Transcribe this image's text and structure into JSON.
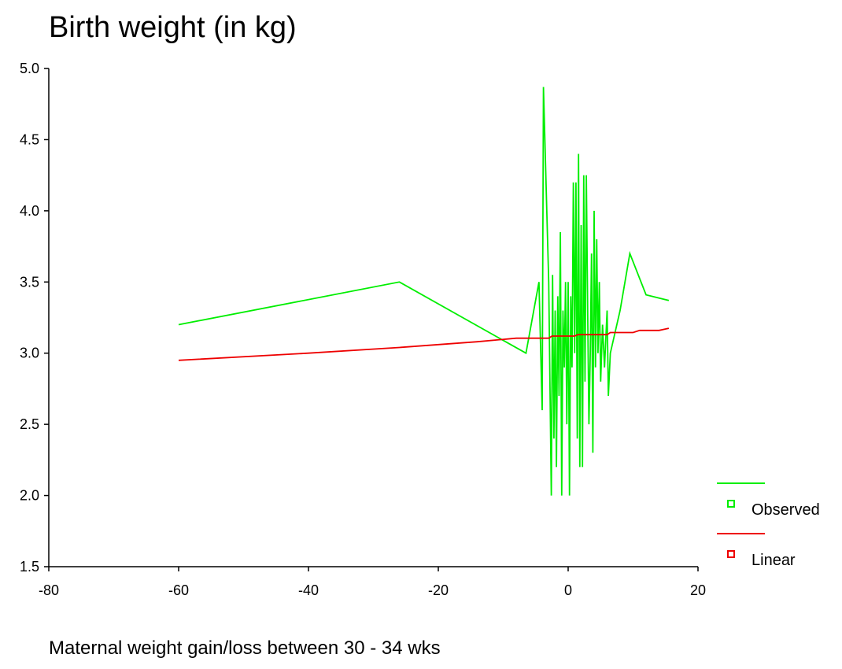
{
  "chart_data": {
    "type": "line",
    "title": "Birth weight (in kg)",
    "xlabel": "Maternal weight gain/loss between 30 - 34 wks",
    "ylabel": "",
    "xlim": [
      -80,
      20
    ],
    "ylim": [
      1.5,
      5.0
    ],
    "x_ticks": [
      -80,
      -60,
      -40,
      -20,
      0,
      20
    ],
    "x_tick_labels": [
      "-80",
      "-60",
      "-40",
      "-20",
      "0",
      "20"
    ],
    "y_ticks": [
      1.5,
      2.0,
      2.5,
      3.0,
      3.5,
      4.0,
      4.5,
      5.0
    ],
    "y_tick_labels": [
      "1.5",
      "2.0",
      "2.5",
      "3.0",
      "3.5",
      "4.0",
      "4.5",
      "5.0"
    ],
    "grid": false,
    "legend_position": "bottom-right",
    "series": [
      {
        "name": "Observed",
        "color": "#00ee00",
        "x": [
          -60,
          -26,
          -6.5,
          -4.5,
          -4.0,
          -3.8,
          -3.0,
          -2.6,
          -2.4,
          -2.2,
          -2.0,
          -1.8,
          -1.6,
          -1.4,
          -1.2,
          -1.0,
          -0.8,
          -0.6,
          -0.4,
          -0.2,
          0.0,
          0.2,
          0.4,
          0.6,
          0.8,
          1.0,
          1.2,
          1.4,
          1.6,
          1.8,
          2.0,
          2.2,
          2.4,
          2.6,
          2.8,
          3.0,
          3.2,
          3.4,
          3.6,
          3.8,
          4.0,
          4.2,
          4.4,
          4.6,
          4.8,
          5.0,
          5.3,
          5.6,
          6.0,
          6.2,
          6.5,
          8.0,
          9.5,
          12.0,
          15.5
        ],
        "y": [
          3.2,
          3.5,
          3.0,
          3.5,
          2.6,
          4.87,
          3.5,
          2.0,
          3.55,
          2.4,
          3.3,
          2.2,
          3.4,
          2.7,
          3.85,
          2.0,
          3.3,
          2.9,
          3.5,
          2.5,
          3.5,
          2.0,
          3.4,
          2.9,
          4.2,
          3.0,
          4.2,
          2.4,
          4.4,
          2.2,
          3.9,
          2.2,
          4.25,
          2.8,
          4.25,
          3.3,
          2.5,
          3.0,
          3.7,
          2.3,
          4.0,
          2.9,
          3.8,
          3.0,
          3.5,
          2.8,
          3.2,
          2.9,
          3.3,
          2.7,
          3.0,
          3.3,
          3.7,
          3.41,
          3.37
        ]
      },
      {
        "name": "Linear",
        "color": "#ee0000",
        "x": [
          -60,
          -40,
          -26,
          -14,
          -8,
          -4,
          -3,
          -2.5,
          1,
          1.5,
          6,
          6.5,
          10,
          11,
          14,
          15,
          15.5
        ],
        "y": [
          2.95,
          3.0,
          3.04,
          3.08,
          3.105,
          3.105,
          3.105,
          3.12,
          3.12,
          3.13,
          3.13,
          3.145,
          3.145,
          3.16,
          3.16,
          3.17,
          3.175
        ]
      }
    ]
  }
}
